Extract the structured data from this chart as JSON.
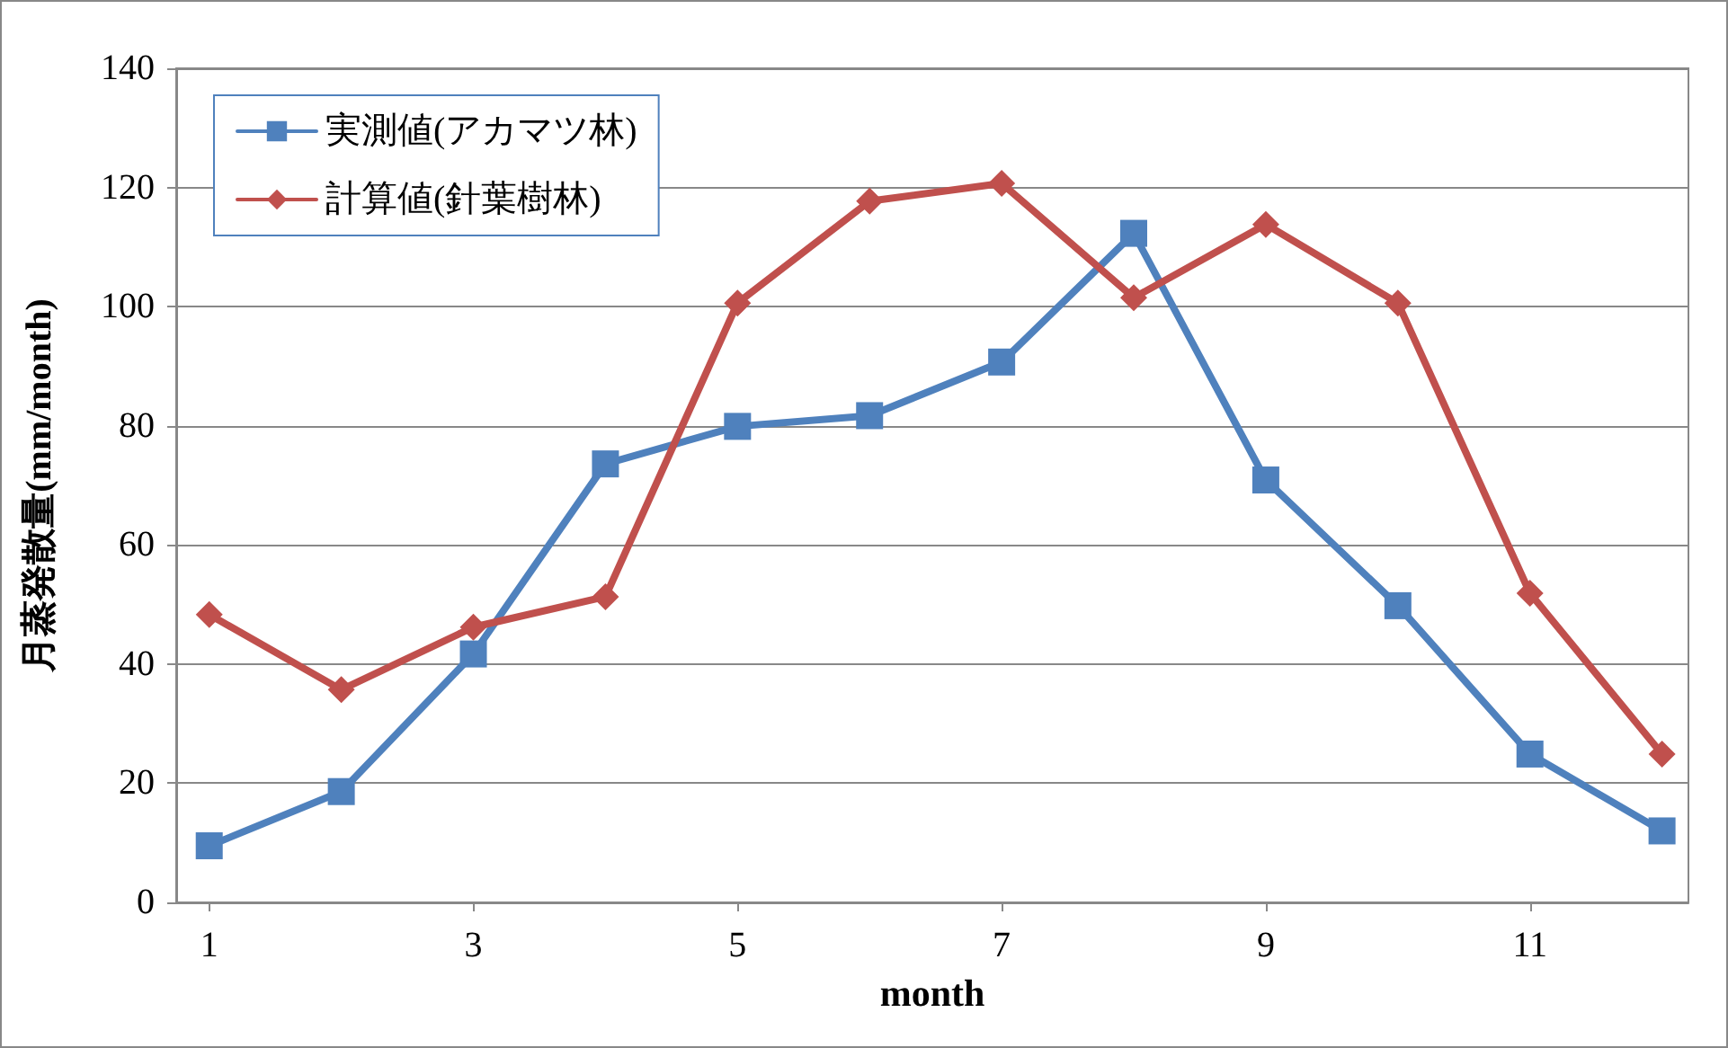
{
  "chart_data": {
    "type": "line",
    "xlabel": "month",
    "ylabel": "月蒸発散量(mm/month)",
    "x": [
      1,
      2,
      3,
      4,
      5,
      6,
      7,
      8,
      9,
      10,
      11,
      12
    ],
    "series": [
      {
        "name": "実測値(アカマツ林)",
        "color": "#4f81bd",
        "marker": "square",
        "values": [
          9.5,
          18.6,
          41.7,
          73.6,
          79.9,
          81.7,
          90.7,
          112.3,
          70.9,
          49.8,
          24.9,
          12.0
        ]
      },
      {
        "name": "計算値(針葉樹林)",
        "color": "#c0504d",
        "marker": "diamond",
        "values": [
          48.3,
          35.7,
          46.2,
          51.3,
          100.6,
          117.7,
          120.7,
          101.5,
          113.8,
          100.6,
          51.9,
          24.9
        ]
      }
    ],
    "xlim": [
      0.75,
      12.2
    ],
    "xticks": [
      1,
      3,
      5,
      7,
      9,
      11
    ],
    "ylim": [
      0,
      140
    ],
    "yticks": [
      0,
      20,
      40,
      60,
      80,
      100,
      120,
      140
    ],
    "grid": "y",
    "legend": "top left",
    "line_style": "solid"
  }
}
